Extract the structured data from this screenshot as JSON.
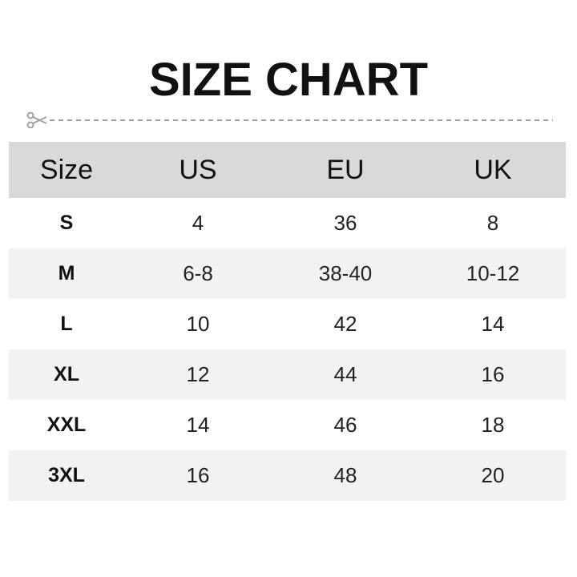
{
  "title": "SIZE CHART",
  "cut_icon": "scissors-icon",
  "colors": {
    "header_bg": "#d9d9d9",
    "alt_row_bg": "#f2f2f2",
    "dash": "#a0a0a0"
  },
  "table": {
    "headers": [
      "Size",
      "US",
      "EU",
      "UK"
    ],
    "rows": [
      [
        "S",
        "4",
        "36",
        "8"
      ],
      [
        "M",
        "6-8",
        "38-40",
        "10-12"
      ],
      [
        "L",
        "10",
        "42",
        "14"
      ],
      [
        "XL",
        "12",
        "44",
        "16"
      ],
      [
        "XXL",
        "14",
        "46",
        "18"
      ],
      [
        "3XL",
        "16",
        "48",
        "20"
      ]
    ]
  }
}
